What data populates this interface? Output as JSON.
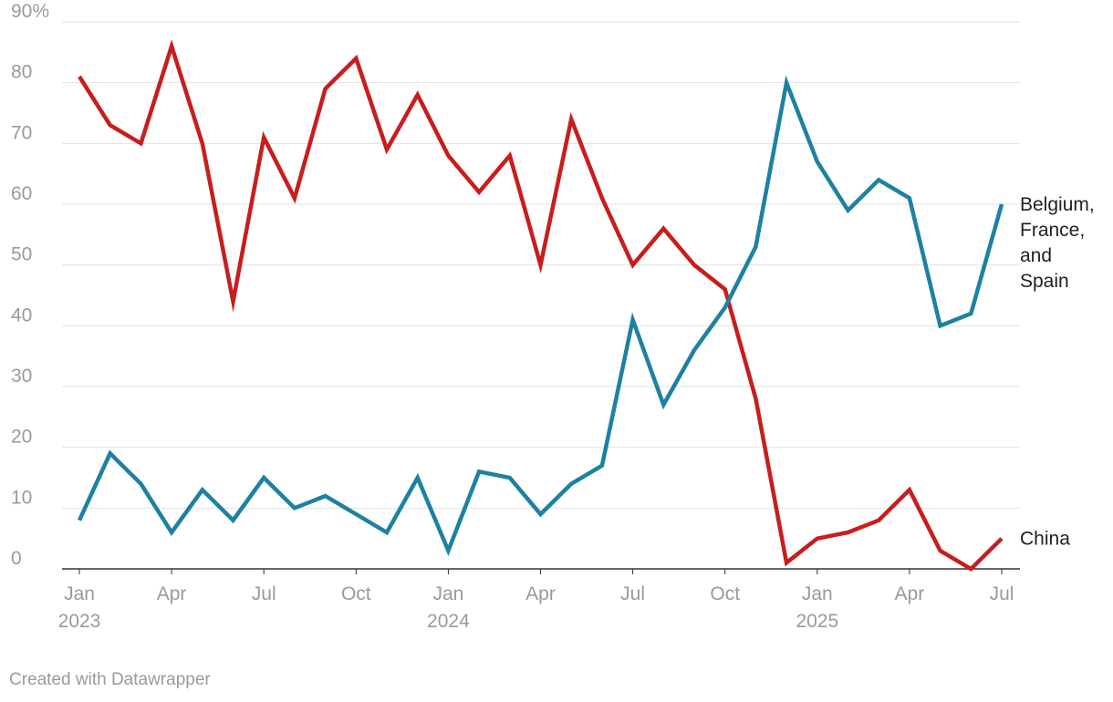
{
  "chart_data": {
    "type": "line",
    "title": "",
    "ylabel": "",
    "xlabel": "",
    "ylim": [
      0,
      90
    ],
    "y_ticks": [
      0,
      10,
      20,
      30,
      40,
      50,
      60,
      70,
      80,
      90
    ],
    "y_tick_labels": [
      "0",
      "10",
      "20",
      "30",
      "40",
      "50",
      "60",
      "70",
      "80",
      "90%"
    ],
    "x_ticks": [
      {
        "index": 0,
        "month": "Jan",
        "year": "2023"
      },
      {
        "index": 3,
        "month": "Apr",
        "year": ""
      },
      {
        "index": 6,
        "month": "Jul",
        "year": ""
      },
      {
        "index": 9,
        "month": "Oct",
        "year": ""
      },
      {
        "index": 12,
        "month": "Jan",
        "year": "2024"
      },
      {
        "index": 15,
        "month": "Apr",
        "year": ""
      },
      {
        "index": 18,
        "month": "Jul",
        "year": ""
      },
      {
        "index": 21,
        "month": "Oct",
        "year": ""
      },
      {
        "index": 24,
        "month": "Jan",
        "year": "2025"
      },
      {
        "index": 27,
        "month": "Apr",
        "year": ""
      },
      {
        "index": 30,
        "month": "Jul",
        "year": ""
      }
    ],
    "x": [
      "2023-01",
      "2023-02",
      "2023-03",
      "2023-04",
      "2023-05",
      "2023-06",
      "2023-07",
      "2023-08",
      "2023-09",
      "2023-10",
      "2023-11",
      "2023-12",
      "2024-01",
      "2024-02",
      "2024-03",
      "2024-04",
      "2024-05",
      "2024-06",
      "2024-07",
      "2024-08",
      "2024-09",
      "2024-10",
      "2024-11",
      "2024-12",
      "2025-01",
      "2025-02",
      "2025-03",
      "2025-04",
      "2025-05",
      "2025-06",
      "2025-07"
    ],
    "series": [
      {
        "name": "China",
        "label_lines": [
          "China"
        ],
        "color": "#c71e1d",
        "values": [
          81,
          73,
          70,
          86,
          70,
          44,
          71,
          61,
          79,
          84,
          69,
          78,
          68,
          62,
          68,
          50,
          74,
          61,
          50,
          56,
          50,
          46,
          28,
          1,
          5,
          6,
          8,
          13,
          3,
          0,
          5
        ]
      },
      {
        "name": "Belgium, France, and Spain",
        "label_lines": [
          "Belgium,",
          "France,",
          "and",
          "Spain"
        ],
        "color": "#1d81a2",
        "values": [
          8,
          19,
          14,
          6,
          13,
          8,
          15,
          10,
          12,
          9,
          6,
          15,
          3,
          16,
          15,
          9,
          14,
          17,
          41,
          27,
          36,
          43,
          53,
          80,
          67,
          59,
          64,
          61,
          40,
          42,
          60
        ]
      }
    ]
  },
  "footer": {
    "credit": "Created with Datawrapper"
  }
}
